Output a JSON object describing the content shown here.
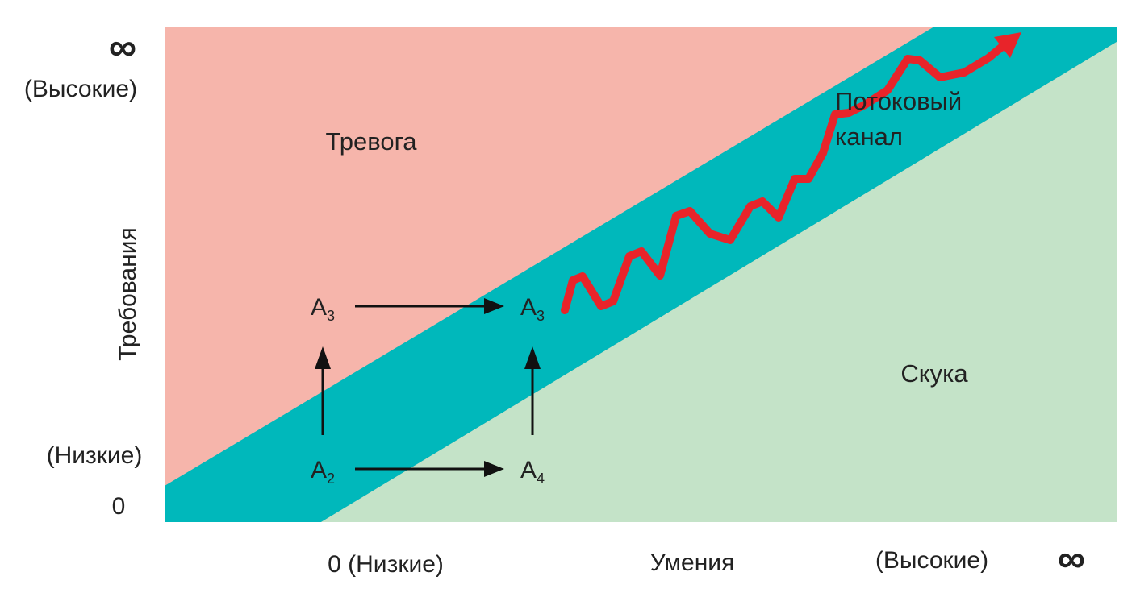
{
  "y_axis": {
    "label": "Требования",
    "top_symbol": "∞",
    "high": "(Высокие)",
    "low": "(Низкие)",
    "zero": "0"
  },
  "x_axis": {
    "label": "Умения",
    "low": "0 (Низкие)",
    "high": "(Высокие)",
    "right_symbol": "∞"
  },
  "zones": {
    "anxiety": "Тревога",
    "flow": [
      "Потоковый",
      "канал"
    ],
    "boredom": "Скука"
  },
  "nodes": [
    {
      "letter": "A",
      "sub": "3"
    },
    {
      "letter": "A",
      "sub": "3"
    },
    {
      "letter": "A",
      "sub": "2"
    },
    {
      "letter": "A",
      "sub": "4"
    }
  ]
}
